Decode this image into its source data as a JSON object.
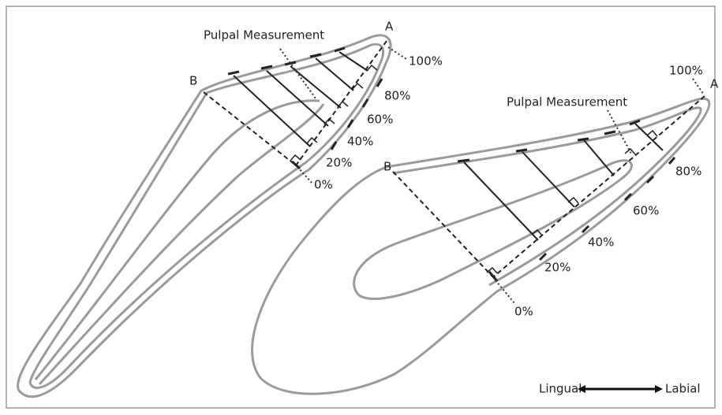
{
  "left": {
    "label": "Pulpal Measurement",
    "point_a": "A",
    "point_b": "B",
    "percent_labels": [
      "100%",
      "80%",
      "60%",
      "40%",
      "20%",
      "0%"
    ]
  },
  "right": {
    "label": "Pulpal Measurement",
    "point_a": "A",
    "point_b": "B",
    "percent_labels": [
      "100%",
      "80%",
      "60%",
      "40%",
      "20%",
      "0%"
    ]
  },
  "legend": {
    "left": "Lingual",
    "right": "Labial"
  }
}
